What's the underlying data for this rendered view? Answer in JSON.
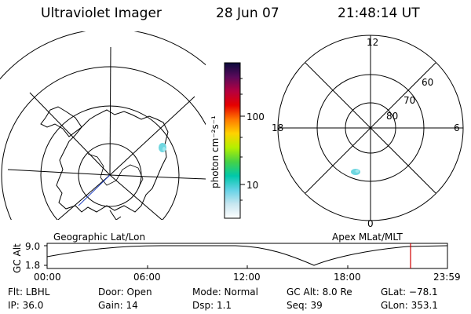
{
  "header": {
    "instrument": "Ultraviolet Imager",
    "date": "28 Jun 07",
    "time": "21:48:14 UT"
  },
  "colorbar": {
    "unit_label": "photon cm⁻²s⁻¹",
    "scale": "log",
    "ticks": [
      {
        "label": "100",
        "value": 100
      },
      {
        "label": "10",
        "value": 10
      }
    ],
    "gradient": [
      "#0a0a3c",
      "#5a0a5a",
      "#b40040",
      "#e60000",
      "#ff7800",
      "#ffd200",
      "#b4f000",
      "#46d246",
      "#00c8aa",
      "#64d2e6",
      "#c8e6f0",
      "#ffffff"
    ]
  },
  "left_map": {
    "label": "Geographic Lat/Lon",
    "aurora_color": "#6fd6e0"
  },
  "right_map": {
    "label": "Apex MLat/MLT",
    "mlt_labels": {
      "top": "12",
      "right": "6",
      "bottom": "0",
      "left": "18"
    },
    "lat_labels": [
      "60",
      "70",
      "80"
    ],
    "aurora_color": "#6fd6e0"
  },
  "timeline": {
    "axis_title": "GC Alt",
    "y_ticks": [
      "9.0",
      "1.8"
    ],
    "x_ticks": [
      "00:00",
      "06:00",
      "12:00",
      "18:00",
      "23:59"
    ],
    "marker_color": "#d00000"
  },
  "info": {
    "filter": "Flt: LBHL",
    "ip": "IP: 36.0",
    "door": "Door: Open",
    "gain": "Gain: 14",
    "mode": "Mode: Normal",
    "dsp": "Dsp:    1.1",
    "gc_alt": "GC Alt: 8.0 Re",
    "seq": "Seq: 39",
    "glat": "GLat: −78.1",
    "glon": "GLon: 353.1"
  }
}
